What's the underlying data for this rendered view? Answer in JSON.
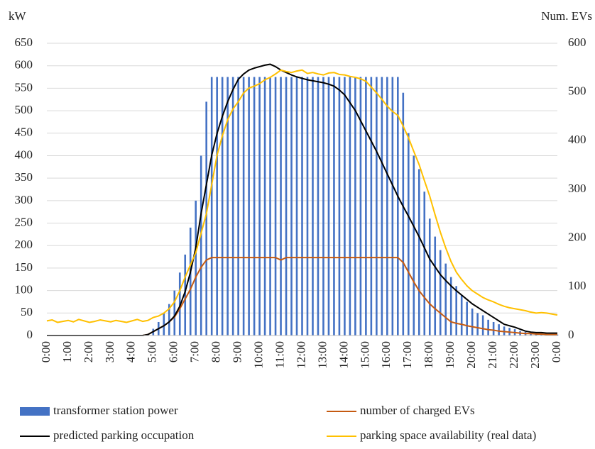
{
  "chart_data": {
    "type": "bar",
    "y_label": "kW",
    "y2_label": "Num. EVs",
    "categories": [
      "0:00",
      null,
      null,
      null,
      "1:00",
      null,
      null,
      null,
      "2:00",
      null,
      null,
      null,
      "3:00",
      null,
      null,
      null,
      "4:00",
      null,
      null,
      null,
      "5:00",
      null,
      null,
      null,
      "6:00",
      null,
      null,
      null,
      "7:00",
      null,
      null,
      null,
      "8:00",
      null,
      null,
      null,
      "9:00",
      null,
      null,
      null,
      "10:00",
      null,
      null,
      null,
      "11:00",
      null,
      null,
      null,
      "12:00",
      null,
      null,
      null,
      "13:00",
      null,
      null,
      null,
      "14:00",
      null,
      null,
      null,
      "15:00",
      null,
      null,
      null,
      "16:00",
      null,
      null,
      null,
      "17:00",
      null,
      null,
      null,
      "18:00",
      null,
      null,
      null,
      "19:00",
      null,
      null,
      null,
      "20:00",
      null,
      null,
      null,
      "21:00",
      null,
      null,
      null,
      "22:00",
      null,
      null,
      null,
      "23:00",
      null,
      null,
      null,
      "0:00"
    ],
    "ylim": [
      0,
      650
    ],
    "yticks": [
      0,
      50,
      100,
      150,
      200,
      250,
      300,
      350,
      400,
      450,
      500,
      550,
      600,
      650
    ],
    "y2lim": [
      0,
      600
    ],
    "y2ticks": [
      0,
      100,
      200,
      300,
      400,
      500,
      600
    ],
    "grid": true,
    "series": [
      {
        "name": "transformer station power",
        "type": "bar",
        "color": "#4472c4",
        "values": [
          0,
          0,
          0,
          0,
          0,
          0,
          0,
          0,
          0,
          0,
          0,
          0,
          0,
          0,
          0,
          0,
          0,
          0,
          0,
          3,
          15,
          30,
          50,
          70,
          100,
          140,
          180,
          240,
          300,
          400,
          520,
          575,
          575,
          575,
          575,
          575,
          575,
          575,
          575,
          575,
          575,
          575,
          575,
          575,
          575,
          575,
          575,
          575,
          575,
          575,
          575,
          575,
          575,
          575,
          575,
          575,
          575,
          575,
          575,
          575,
          575,
          575,
          575,
          575,
          575,
          575,
          575,
          540,
          450,
          400,
          370,
          320,
          260,
          220,
          190,
          160,
          130,
          110,
          90,
          75,
          60,
          50,
          45,
          35,
          30,
          25,
          20,
          17,
          14,
          10,
          8,
          6,
          5,
          4,
          3,
          2,
          2
        ]
      },
      {
        "name": "number of charged EVs",
        "type": "line",
        "axis": "y2",
        "color": "#c55a11",
        "values": [
          0,
          0,
          0,
          0,
          0,
          0,
          0,
          0,
          0,
          0,
          0,
          0,
          0,
          0,
          0,
          0,
          0,
          0,
          0,
          2,
          8,
          14,
          20,
          28,
          38,
          55,
          75,
          95,
          120,
          140,
          155,
          160,
          160,
          160,
          160,
          160,
          160,
          160,
          160,
          160,
          160,
          160,
          160,
          160,
          155,
          160,
          160,
          160,
          160,
          160,
          160,
          160,
          160,
          160,
          160,
          160,
          160,
          160,
          160,
          160,
          160,
          160,
          160,
          160,
          160,
          160,
          160,
          150,
          130,
          110,
          92,
          78,
          65,
          55,
          46,
          37,
          28,
          25,
          23,
          20,
          18,
          16,
          14,
          12,
          11,
          9,
          8,
          7,
          6,
          5,
          4,
          4,
          3,
          3,
          2,
          2,
          2
        ]
      },
      {
        "name": "predicted parking occupation",
        "type": "line",
        "axis": "y2",
        "color": "#000000",
        "values": [
          0,
          0,
          0,
          0,
          0,
          0,
          0,
          0,
          0,
          0,
          0,
          0,
          0,
          0,
          0,
          0,
          0,
          0,
          0,
          2,
          8,
          14,
          20,
          28,
          40,
          60,
          90,
          130,
          180,
          250,
          310,
          370,
          415,
          450,
          480,
          505,
          526,
          537,
          545,
          549,
          552,
          555,
          557,
          552,
          545,
          540,
          535,
          531,
          528,
          525,
          523,
          521,
          519,
          516,
          512,
          504,
          494,
          478,
          462,
          441,
          420,
          399,
          378,
          355,
          332,
          309,
          286,
          265,
          245,
          224,
          203,
          180,
          157,
          141,
          125,
          113,
          102,
          92,
          83,
          74,
          65,
          58,
          51,
          44,
          37,
          30,
          23,
          20,
          17,
          13,
          9,
          7,
          6,
          6,
          5,
          5,
          5
        ]
      },
      {
        "name": "parking space availability (real data)",
        "type": "line",
        "axis": "y2",
        "color": "#ffc000",
        "values": [
          30,
          32,
          27,
          29,
          31,
          28,
          33,
          30,
          27,
          29,
          32,
          30,
          28,
          31,
          29,
          27,
          30,
          33,
          29,
          31,
          37,
          40,
          46,
          55,
          69,
          92,
          120,
          145,
          170,
          210,
          250,
          310,
          370,
          410,
          443,
          465,
          480,
          498,
          508,
          512,
          517,
          525,
          530,
          537,
          545,
          542,
          540,
          543,
          545,
          538,
          540,
          537,
          535,
          539,
          540,
          536,
          535,
          532,
          530,
          527,
          522,
          510,
          498,
          485,
          471,
          460,
          452,
          430,
          406,
          378,
          351,
          318,
          286,
          248,
          212,
          180,
          152,
          130,
          115,
          102,
          92,
          85,
          78,
          73,
          69,
          64,
          60,
          57,
          55,
          53,
          51,
          48,
          46,
          47,
          46,
          44,
          42
        ]
      }
    ]
  }
}
